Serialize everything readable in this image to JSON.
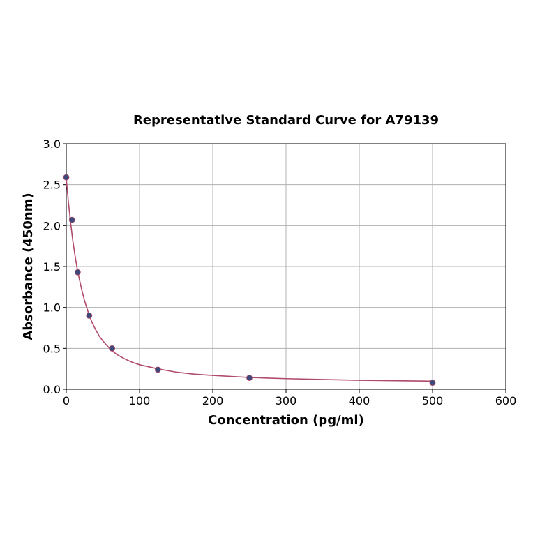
{
  "chart_data": {
    "type": "scatter",
    "title": "Representative Standard Curve for A79139",
    "xlabel": "Concentration (pg/ml)",
    "ylabel": "Absorbance (450nm)",
    "xlim": [
      0,
      600
    ],
    "ylim": [
      0,
      3.0
    ],
    "xticks": [
      "0",
      "100",
      "200",
      "300",
      "400",
      "500",
      "600"
    ],
    "yticks": [
      "0.0",
      "0.5",
      "1.0",
      "1.5",
      "2.0",
      "2.5",
      "3.0"
    ],
    "grid": true,
    "series": [
      {
        "x": [
          0,
          7.8,
          15.6,
          31.25,
          62.5,
          125,
          250,
          500
        ],
        "y": [
          2.59,
          2.07,
          1.43,
          0.9,
          0.5,
          0.24,
          0.14,
          0.08
        ]
      }
    ],
    "fit_curve": {
      "x": [
        0,
        3,
        6,
        9,
        12,
        15,
        18,
        21,
        25,
        30,
        35,
        40,
        45,
        50,
        55,
        62.5,
        70,
        80,
        90,
        100,
        115,
        125,
        150,
        175,
        200,
        250,
        300,
        350,
        400,
        450,
        500
      ],
      "y": [
        2.57,
        2.28,
        2.03,
        1.81,
        1.63,
        1.47,
        1.34,
        1.22,
        1.08,
        0.94,
        0.82,
        0.73,
        0.65,
        0.59,
        0.54,
        0.47,
        0.42,
        0.37,
        0.33,
        0.3,
        0.27,
        0.25,
        0.21,
        0.185,
        0.17,
        0.145,
        0.13,
        0.12,
        0.11,
        0.105,
        0.1
      ]
    },
    "colors": {
      "marker": "#3b4a7a",
      "curve": "#b04a6a",
      "grid": "#b0b0b0"
    }
  }
}
